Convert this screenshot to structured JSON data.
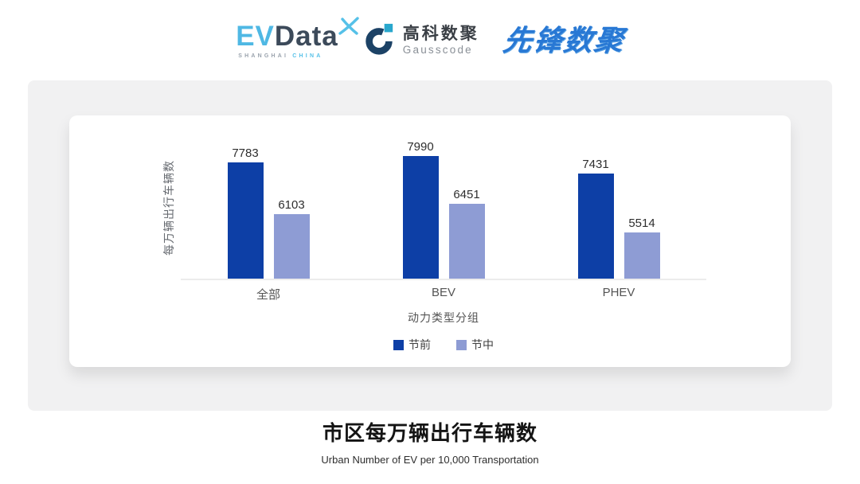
{
  "header": {
    "evdata": {
      "part1": "EV",
      "part2": "Data",
      "subtext1": "SHANGHAI",
      "subtext2": "CHINA"
    },
    "gausscode": {
      "name_cn": "高科数聚",
      "name_en": "Gausscode"
    },
    "pioneer": {
      "name": "先锋数聚"
    }
  },
  "chart_data": {
    "type": "bar",
    "title": "市区每万辆出行车辆数",
    "subtitle": "Urban Number of EV per 10,000 Transportation",
    "xlabel": "动力类型分组",
    "ylabel": "每万辆出行车辆数",
    "categories": [
      "全部",
      "BEV",
      "PHEV"
    ],
    "series": [
      {
        "name": "节前",
        "color": "#0d3fa6",
        "values": [
          7783,
          7990,
          7431
        ]
      },
      {
        "name": "节中",
        "color": "#8e9cd4",
        "values": [
          6103,
          6451,
          5514
        ]
      }
    ],
    "ylim": [
      4000,
      8800
    ],
    "grid": false,
    "legend_position": "bottom",
    "value_labels": true
  }
}
